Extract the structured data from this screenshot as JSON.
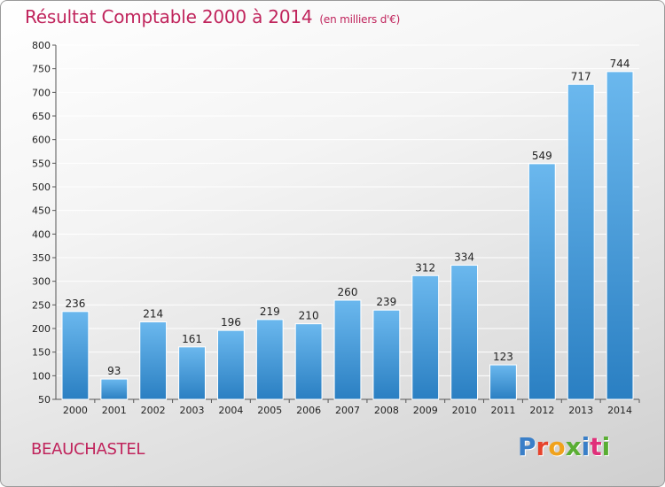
{
  "header": {
    "title": "Résultat Comptable 2000 à 2014",
    "unit": "(en milliers d'€)"
  },
  "commune": "BEAUCHASTEL",
  "brand": {
    "name": "Proxiti",
    "letter_colors": [
      "#3a7fc8",
      "#e6432c",
      "#f0a21c",
      "#5aae33",
      "#3a7fc8",
      "#e0307a",
      "#5aae33"
    ]
  },
  "colors": {
    "bar_light": "#6bb8ee",
    "bar_dark": "#2a7fc2",
    "title": "#c0245c",
    "grid": "#ffffff"
  },
  "chart_data": {
    "type": "bar",
    "title": "Résultat Comptable 2000 à 2014",
    "subtitle": "(en milliers d'€)",
    "xlabel": "",
    "ylabel": "",
    "categories": [
      "2000",
      "2001",
      "2002",
      "2003",
      "2004",
      "2005",
      "2006",
      "2007",
      "2008",
      "2009",
      "2010",
      "2011",
      "2012",
      "2013",
      "2014"
    ],
    "values": [
      236,
      93,
      214,
      161,
      196,
      219,
      210,
      260,
      239,
      312,
      334,
      123,
      549,
      717,
      744
    ],
    "ylim": [
      50,
      800
    ],
    "yticks": [
      50,
      100,
      150,
      200,
      250,
      300,
      350,
      400,
      450,
      500,
      550,
      600,
      650,
      700,
      750,
      800
    ],
    "grid": true
  }
}
